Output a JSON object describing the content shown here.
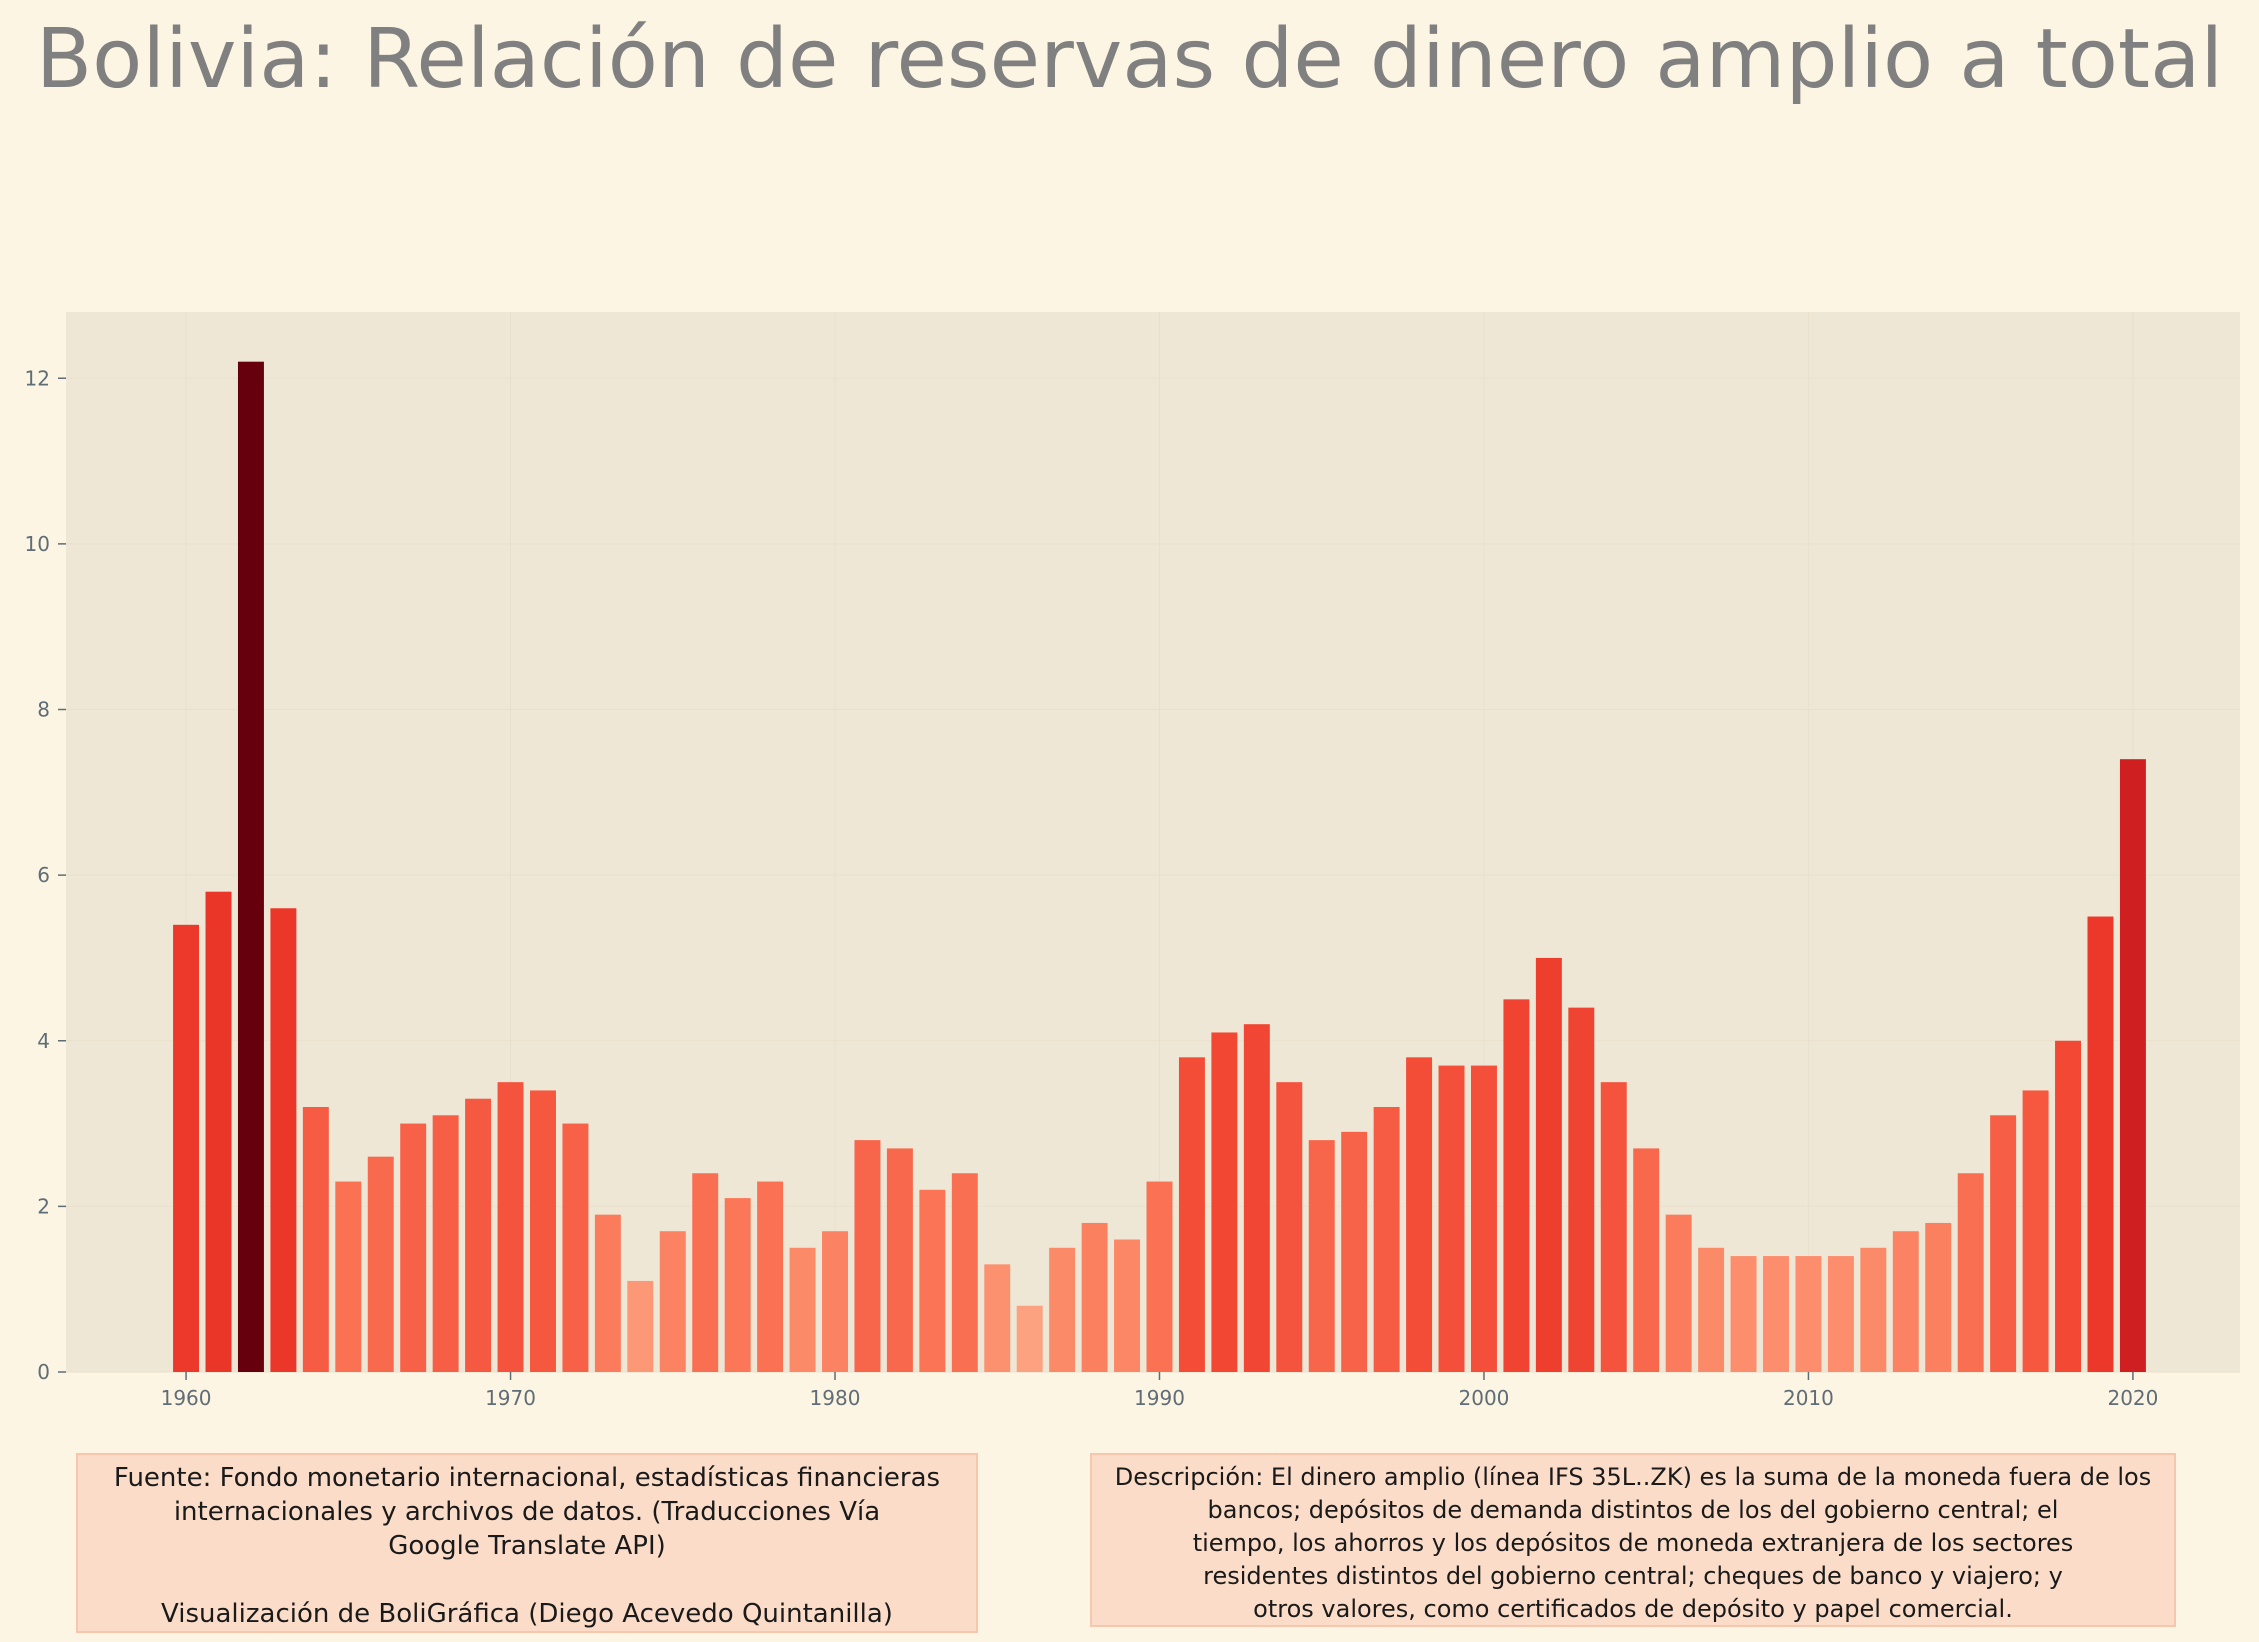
{
  "chart_data": {
    "type": "bar",
    "title": "Bolivia:  Relación de reservas de dinero amplio a total",
    "xlabel": "",
    "ylabel": "",
    "x": [
      1960,
      1961,
      1962,
      1963,
      1964,
      1965,
      1966,
      1967,
      1968,
      1969,
      1970,
      1971,
      1972,
      1973,
      1974,
      1975,
      1976,
      1977,
      1978,
      1979,
      1980,
      1981,
      1982,
      1983,
      1984,
      1985,
      1986,
      1987,
      1988,
      1989,
      1990,
      1991,
      1992,
      1993,
      1994,
      1995,
      1996,
      1997,
      1998,
      1999,
      2000,
      2001,
      2002,
      2003,
      2004,
      2005,
      2006,
      2007,
      2008,
      2009,
      2010,
      2011,
      2012,
      2013,
      2014,
      2015,
      2016,
      2017,
      2018,
      2019,
      2020
    ],
    "values": [
      5.4,
      5.8,
      12.2,
      5.6,
      3.2,
      2.3,
      2.6,
      3.0,
      3.1,
      3.3,
      3.5,
      3.4,
      3.0,
      1.9,
      1.1,
      1.7,
      2.4,
      2.1,
      2.3,
      1.5,
      1.7,
      2.8,
      2.7,
      2.2,
      2.4,
      1.3,
      0.8,
      1.5,
      1.8,
      1.6,
      2.3,
      3.8,
      4.1,
      4.2,
      3.5,
      2.8,
      2.9,
      3.2,
      3.8,
      3.7,
      3.7,
      4.5,
      5.0,
      4.4,
      3.5,
      2.7,
      1.9,
      1.5,
      1.4,
      1.4,
      1.4,
      1.4,
      1.5,
      1.7,
      1.8,
      2.4,
      3.1,
      3.4,
      4.0,
      5.5,
      7.4
    ],
    "xlim": [
      1956.3,
      2023.3
    ],
    "ylim": [
      0,
      12.8
    ],
    "x_ticks": [
      "1960",
      "1970",
      "1980",
      "1990",
      "2000",
      "2010",
      "2020"
    ],
    "y_ticks": [
      "0",
      "2",
      "4",
      "6",
      "8",
      "10",
      "12"
    ],
    "grid": true,
    "color_scale": "reds (darker = higher value)"
  },
  "notes": {
    "source": "Fuente: Fondo monetario internacional, estadísticas financieras\ninternacionales y archivos de datos. (Traducciones Vía\nGoogle Translate API)\n\nVisualización de BoliGráfica (Diego Acevedo Quintanilla)",
    "description": "Descripción: El dinero amplio (línea IFS 35L..ZK) es la suma de la moneda fuera de los\nbancos; depósitos de demanda distintos de los del gobierno central; el\ntiempo, los ahorros y los depósitos de moneda extranjera de los sectores\nresidentes distintos del gobierno central; cheques de banco y viajero; y\notros valores, como certificados de depósito y papel comercial."
  },
  "colors": {
    "page_background": "#fdf5e3",
    "panel_background": "#efe7d5",
    "title": "#808080",
    "axis_text": "#5f6d76"
  }
}
